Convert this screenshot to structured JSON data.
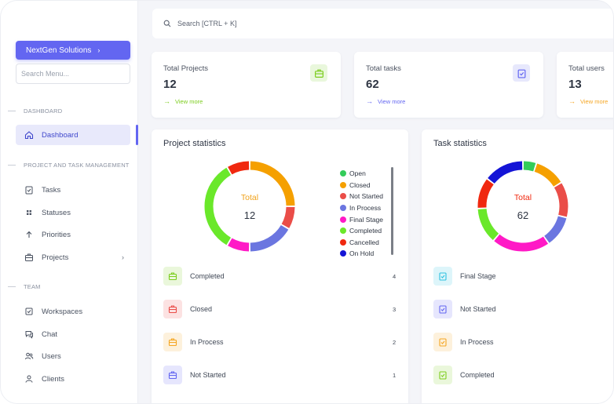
{
  "topbar": {
    "search_placeholder": "Search [CTRL + K]"
  },
  "sidebar": {
    "company": "NextGen Solutions",
    "search_placeholder": "Search Menu...",
    "sections": [
      {
        "label": "DASHBOARD"
      },
      {
        "label": "PROJECT AND TASK MANAGEMENT"
      },
      {
        "label": "TEAM"
      }
    ],
    "items": [
      {
        "label": "Dashboard",
        "icon": "home-icon"
      },
      {
        "label": "Tasks",
        "icon": "clipboard-check-icon"
      },
      {
        "label": "Statuses",
        "icon": "grid-dots-icon"
      },
      {
        "label": "Priorities",
        "icon": "arrow-up-icon"
      },
      {
        "label": "Projects",
        "icon": "briefcase-icon"
      },
      {
        "label": "Workspaces",
        "icon": "checkbox-icon"
      },
      {
        "label": "Chat",
        "icon": "chat-icon"
      },
      {
        "label": "Users",
        "icon": "users-icon"
      },
      {
        "label": "Clients",
        "icon": "clients-icon"
      }
    ]
  },
  "stats": [
    {
      "title": "Total Projects",
      "value": "12",
      "link": "View more",
      "color": "#7ccd1e",
      "icon": "briefcase-icon"
    },
    {
      "title": "Total tasks",
      "value": "62",
      "link": "View more",
      "color": "#6366f1",
      "icon": "clipboard-check-icon"
    },
    {
      "title": "Total users",
      "value": "13",
      "link": "View more",
      "color": "#f5a623",
      "icon": "users-icon"
    }
  ],
  "project_panel": {
    "title": "Project statistics",
    "total_label": "Total",
    "total_value": "12",
    "legend": [
      {
        "label": "Open",
        "color": "#33cc5a"
      },
      {
        "label": "Closed",
        "color": "#f5a000"
      },
      {
        "label": "Not Started",
        "color": "#ea4d48"
      },
      {
        "label": "In Process",
        "color": "#6b76e0"
      },
      {
        "label": "Final Stage",
        "color": "#ff1ac6"
      },
      {
        "label": "Completed",
        "color": "#6ae82a"
      },
      {
        "label": "Cancelled",
        "color": "#f0280f"
      },
      {
        "label": "On Hold",
        "color": "#1414d6"
      }
    ],
    "rows": [
      {
        "label": "Completed",
        "count": "4",
        "color": "#7ccd1e"
      },
      {
        "label": "Closed",
        "count": "3",
        "color": "#ea4d48"
      },
      {
        "label": "In Process",
        "count": "2",
        "color": "#f5a623"
      },
      {
        "label": "Not Started",
        "count": "1",
        "color": "#6366f1"
      }
    ]
  },
  "task_panel": {
    "title": "Task statistics",
    "total_label": "Total",
    "total_value": "62",
    "rows": [
      {
        "label": "Final Stage",
        "color": "#2ec1e0"
      },
      {
        "label": "Not Started",
        "color": "#6366f1"
      },
      {
        "label": "In Process",
        "color": "#f5a623"
      },
      {
        "label": "Completed",
        "color": "#7ccd1e"
      }
    ]
  },
  "chart_data": [
    {
      "type": "pie",
      "title": "Project statistics",
      "categories": [
        "Open",
        "Closed",
        "Not Started",
        "In Process",
        "Final Stage",
        "Completed",
        "Cancelled",
        "On Hold"
      ],
      "values": [
        0,
        3,
        1,
        2,
        1,
        4,
        1,
        0
      ],
      "colors": [
        "#33cc5a",
        "#f5a000",
        "#ea4d48",
        "#6b76e0",
        "#ff1ac6",
        "#6ae82a",
        "#f0280f",
        "#1414d6"
      ]
    },
    {
      "type": "pie",
      "title": "Task statistics",
      "categories": [
        "Open",
        "Closed",
        "Not Started",
        "In Process",
        "Final Stage",
        "Completed",
        "Cancelled",
        "On Hold"
      ],
      "values": [
        3,
        7,
        8,
        7,
        13,
        8,
        7,
        9
      ],
      "colors": [
        "#33cc5a",
        "#f5a000",
        "#ea4d48",
        "#6b76e0",
        "#ff1ac6",
        "#6ae82a",
        "#f0280f",
        "#1414d6"
      ]
    }
  ]
}
